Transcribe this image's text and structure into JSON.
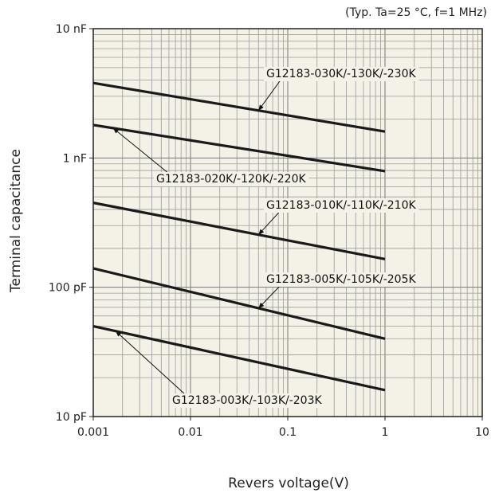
{
  "chart_data": {
    "type": "line",
    "conditions": "(Typ. Ta=25 °C, f=1 MHz)",
    "xlabel": "Revers voltage(V)",
    "ylabel": "Terminal capacitance",
    "x_scale": "log",
    "y_scale": "log",
    "xlim": [
      0.001,
      10
    ],
    "ylim": [
      10,
      10000
    ],
    "y_unit": "pF",
    "x_ticks": [
      {
        "value": 0.001,
        "label": "0.001"
      },
      {
        "value": 0.01,
        "label": "0.01"
      },
      {
        "value": 0.1,
        "label": "0.1"
      },
      {
        "value": 1,
        "label": "1"
      },
      {
        "value": 10,
        "label": "10"
      }
    ],
    "y_ticks": [
      {
        "value": 10,
        "label": "10 pF"
      },
      {
        "value": 100,
        "label": "100 pF"
      },
      {
        "value": 1000,
        "label": "1 nF"
      },
      {
        "value": 10000,
        "label": "10 nF"
      }
    ],
    "grid": true,
    "plot_background": "#f4f2e6",
    "line_color": "#1a1a1a",
    "series": [
      {
        "name": "G12183-030K/-130K/-230K",
        "x": [
          0.001,
          1
        ],
        "y": [
          3800,
          1600
        ]
      },
      {
        "name": "G12183-020K/-120K/-220K",
        "x": [
          0.001,
          1
        ],
        "y": [
          1800,
          790
        ]
      },
      {
        "name": "G12183-010K/-110K/-210K",
        "x": [
          0.001,
          1
        ],
        "y": [
          450,
          165
        ]
      },
      {
        "name": "G12183-005K/-105K/-205K",
        "x": [
          0.001,
          1
        ],
        "y": [
          140,
          40
        ]
      },
      {
        "name": "G12183-003K/-103K/-203K",
        "x": [
          0.001,
          1
        ],
        "y": [
          50,
          16
        ]
      }
    ]
  }
}
